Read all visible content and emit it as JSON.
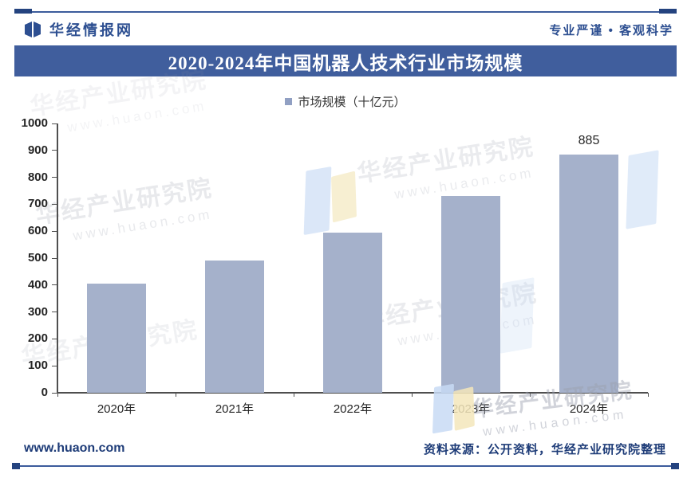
{
  "header": {
    "brand": "华经情报网",
    "slogan": "专业严谨 • 客观科学"
  },
  "title": "2020-2024年中国机器人技术行业市场规模",
  "legend": {
    "label": "市场规模（十亿元）"
  },
  "chart_data": {
    "type": "bar",
    "title": "2020-2024年中国机器人技术行业市场规模",
    "categories": [
      "2020年",
      "2021年",
      "2022年",
      "2023年",
      "2024年"
    ],
    "values": [
      405,
      490,
      595,
      730,
      885
    ],
    "data_labels": [
      "",
      "",
      "",
      "",
      "885"
    ],
    "series_name": "市场规模（十亿元）",
    "xlabel": "",
    "ylabel": "",
    "ylim": [
      0,
      1000
    ],
    "yticks": [
      0,
      100,
      200,
      300,
      400,
      500,
      600,
      700,
      800,
      900,
      1000
    ],
    "grid": false,
    "legend_position": "top",
    "bar_color": "#a5b1cb"
  },
  "watermark": {
    "text": "华经产业研究院",
    "url": "www.huaon.com"
  },
  "footer": {
    "site": "www.huaon.com",
    "source": "资料来源：公开资料，华经产业研究院整理"
  },
  "colors": {
    "accent_bar": "#405e9d",
    "brand_text": "#2d4f91",
    "bar": "#a5b1cb",
    "axis": "#4f4f4f",
    "tick_label": "#262626",
    "footer_text": "#1e3c78"
  }
}
